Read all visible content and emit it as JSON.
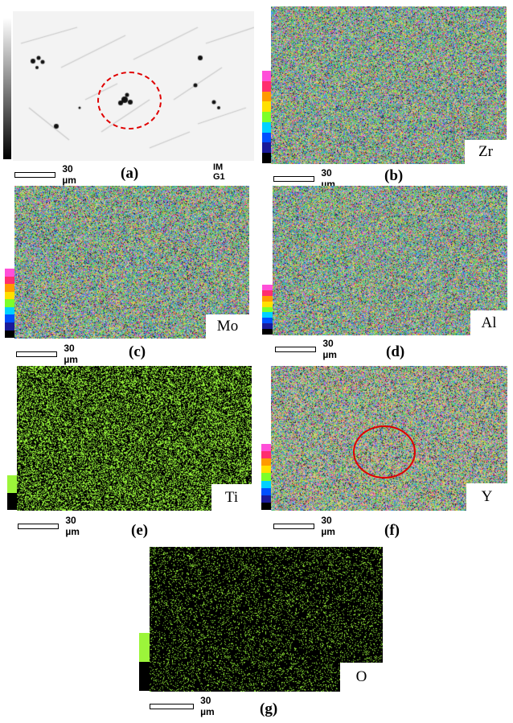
{
  "scale_text": "30 µm",
  "panels": [
    {
      "id": "a",
      "label": "(a)",
      "element": "",
      "tag": "IM G1"
    },
    {
      "id": "b",
      "label": "(b)",
      "element": "Zr"
    },
    {
      "id": "c",
      "label": "(c)",
      "element": "Mo"
    },
    {
      "id": "d",
      "label": "(d)",
      "element": "Al"
    },
    {
      "id": "e",
      "label": "(e)",
      "element": "Ti"
    },
    {
      "id": "f",
      "label": "(f)",
      "element": "Y"
    },
    {
      "id": "g",
      "label": "(g)",
      "element": "O"
    }
  ],
  "colors": {
    "circle": "#e00000",
    "rainbow": [
      "#ff4fd8",
      "#ff2d6e",
      "#ff9a00",
      "#ffe000",
      "#7cff2a",
      "#00d2ff",
      "#0050ff",
      "#1a1a99",
      "#000000"
    ],
    "green": "#9cf53a"
  }
}
